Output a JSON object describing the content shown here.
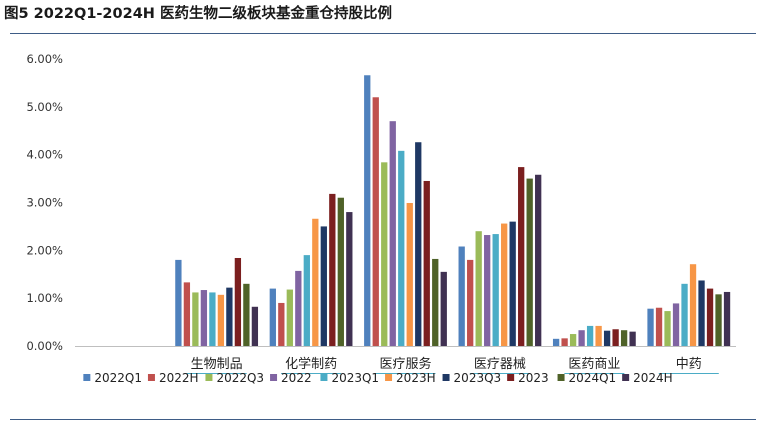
{
  "title": "图5  2022Q1-2024H 医药生物二级板块基金重仓持股比例",
  "chart_data": {
    "type": "bar",
    "title": "",
    "xlabel": "",
    "ylabel": "",
    "ylim": [
      0,
      6
    ],
    "y_ticks": [
      "0.00%",
      "1.00%",
      "2.00%",
      "3.00%",
      "4.00%",
      "5.00%",
      "6.00%"
    ],
    "grid": false,
    "legend_position": "bottom",
    "categories": [
      "生物制品",
      "化学制药",
      "医疗服务",
      "医疗器械",
      "医药商业",
      "中药"
    ],
    "series": [
      {
        "name": "2022Q1",
        "color": "#4f81bd",
        "values": [
          1.8,
          1.2,
          5.66,
          2.08,
          0.15,
          0.78
        ]
      },
      {
        "name": "2022H",
        "color": "#c0504d",
        "values": [
          1.33,
          0.9,
          5.2,
          1.8,
          0.16,
          0.8
        ]
      },
      {
        "name": "2022Q3",
        "color": "#9bbb59",
        "values": [
          1.12,
          1.18,
          3.84,
          2.4,
          0.25,
          0.73
        ]
      },
      {
        "name": "2022",
        "color": "#8064a2",
        "values": [
          1.17,
          1.57,
          4.7,
          2.32,
          0.33,
          0.89
        ]
      },
      {
        "name": "2023Q1",
        "color": "#4bacc6",
        "values": [
          1.12,
          1.9,
          4.08,
          2.34,
          0.42,
          1.3
        ]
      },
      {
        "name": "2023H",
        "color": "#f79646",
        "values": [
          1.07,
          2.66,
          2.99,
          2.56,
          0.42,
          1.71
        ]
      },
      {
        "name": "2023Q3",
        "color": "#1f3864",
        "values": [
          1.22,
          2.5,
          4.26,
          2.6,
          0.32,
          1.37
        ]
      },
      {
        "name": "2023",
        "color": "#7b1f1f",
        "values": [
          1.84,
          3.18,
          3.45,
          3.74,
          0.35,
          1.2
        ]
      },
      {
        "name": "2024Q1",
        "color": "#4f6228",
        "values": [
          1.3,
          3.1,
          1.82,
          3.5,
          0.33,
          1.08
        ]
      },
      {
        "name": "2024H",
        "color": "#403152",
        "values": [
          0.82,
          2.8,
          1.55,
          3.58,
          0.3,
          1.13
        ]
      }
    ]
  }
}
